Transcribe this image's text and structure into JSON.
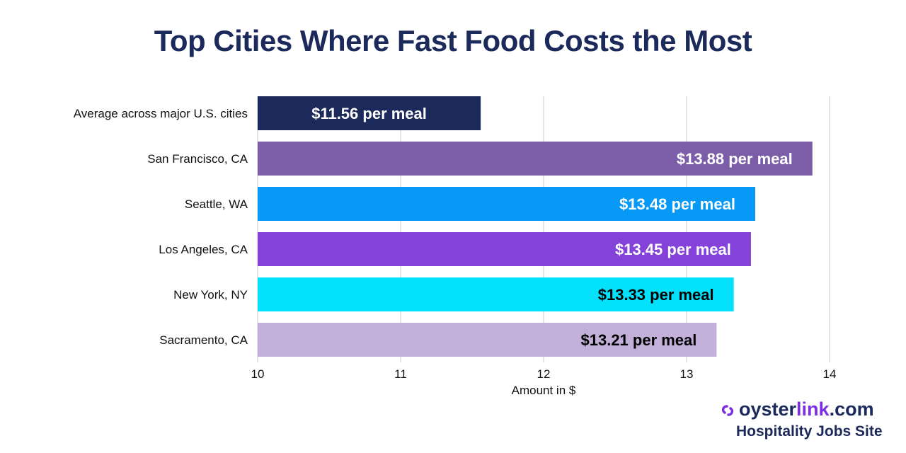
{
  "chart_data": {
    "type": "bar",
    "orientation": "horizontal",
    "title": "Top Cities Where Fast Food Costs the Most",
    "xlabel": "Amount in $",
    "ylabel": "",
    "xlim": [
      10,
      14
    ],
    "ticks": [
      10,
      11,
      12,
      13,
      14
    ],
    "grid": true,
    "categories": [
      "Average across major U.S. cities",
      "San Francisco, CA",
      "Seattle, WA",
      "Los Angeles, CA",
      "New York, NY",
      "Sacramento, CA"
    ],
    "values": [
      11.56,
      13.88,
      13.48,
      13.45,
      13.33,
      13.21
    ],
    "data_labels": [
      "$11.56 per meal",
      "$13.88 per meal",
      "$13.48 per meal",
      "$13.45 per meal",
      "$13.33 per meal",
      "$13.21 per meal"
    ],
    "colors": [
      "#1b2a5a",
      "#7b5ea7",
      "#0799f6",
      "#8442d8",
      "#04e1fb",
      "#c2b0da"
    ],
    "label_colors": [
      "#ffffff",
      "#ffffff",
      "#ffffff",
      "#ffffff",
      "#000000",
      "#000000"
    ]
  },
  "branding": {
    "logo_prefix": "oyster",
    "logo_highlight": "link",
    "logo_suffix": ".com",
    "tagline": "Hospitality Jobs Site",
    "brand_color": "#1b2a5a",
    "accent_color": "#7a2fe0"
  }
}
